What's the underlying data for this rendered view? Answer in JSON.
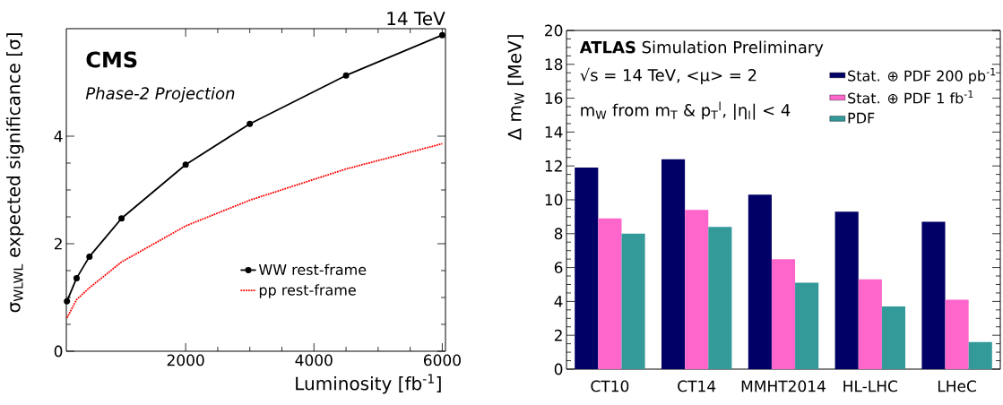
{
  "chart_data": [
    {
      "type": "line",
      "xlabel": "Luminosity [fb$^{-1}$]",
      "ylabel": "σ$_{WLWL}$ expected significance [σ]",
      "annotations": [
        "14 TeV",
        "CMS",
        "Phase-2 Projection"
      ],
      "x": [
        150,
        300,
        500,
        1000,
        2000,
        3000,
        4500,
        6000
      ],
      "series": [
        {
          "name": "WW rest-frame",
          "color": "#000000",
          "values": [
            0.93,
            1.36,
            1.76,
            2.47,
            3.47,
            4.23,
            5.13,
            5.88
          ],
          "marker": "circle",
          "line_style": "solid"
        },
        {
          "name": "pp rest-frame",
          "color": "#ff0000",
          "values": [
            0.62,
            0.96,
            1.18,
            1.66,
            2.33,
            2.81,
            3.39,
            3.86
          ],
          "marker": "none",
          "line_style": "dotted"
        }
      ],
      "xlim": [
        140,
        6050
      ],
      "ylim": [
        0,
        6
      ],
      "xticks": [
        2000,
        4000,
        6000
      ],
      "yticks": [
        0,
        2,
        4
      ],
      "legend": "bottom"
    },
    {
      "type": "bar",
      "ylabel": "Δ m$_{W}$ [MeV]",
      "annotations": [
        "**ATLAS** Simulation Preliminary",
        "√s = 14 TeV, <μ> = 2",
        "m$_{W}$ from m$_{T}$ & p$_{T}$$^{l}$, |η$_{l}$| < 4"
      ],
      "categories": [
        "CT10",
        "CT14",
        "MMHT2014",
        "HL-LHC",
        "LHeC"
      ],
      "series": [
        {
          "name": "Stat. ⊕ PDF 200 pb$^{-1}$",
          "color": "#000066",
          "values": [
            11.9,
            12.4,
            10.3,
            9.3,
            8.7
          ]
        },
        {
          "name": "Stat. ⊕ PDF 1 fb$^{-1}$",
          "color": "#ff66cc",
          "values": [
            8.9,
            9.4,
            6.5,
            5.3,
            4.1
          ]
        },
        {
          "name": "PDF",
          "color": "#339999",
          "values": [
            8.0,
            8.4,
            5.1,
            3.7,
            1.6
          ]
        }
      ],
      "ylim": [
        0,
        20
      ],
      "yticks": [
        0,
        2,
        4,
        6,
        8,
        10,
        12,
        14,
        16,
        18,
        20
      ],
      "legend": "top right"
    }
  ]
}
